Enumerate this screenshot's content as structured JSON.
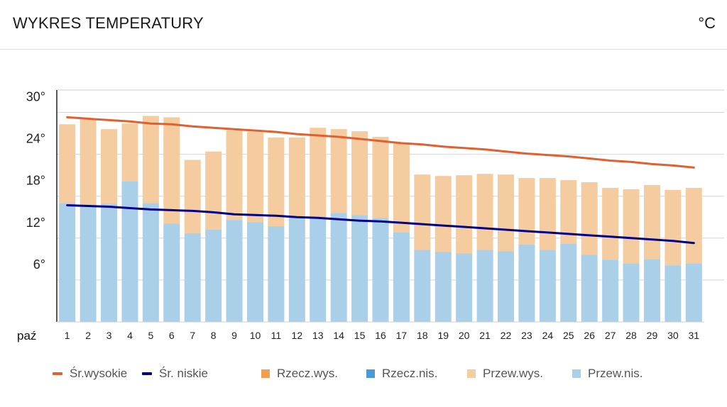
{
  "header": {
    "title": "WYKRES TEMPERATURY",
    "unit": "°C"
  },
  "legend": [
    {
      "label": "Śr.wysokie",
      "kind": "line",
      "color": "#e0602f"
    },
    {
      "label": "Śr. niskie",
      "kind": "line",
      "color": "#00008b"
    },
    {
      "label": "Rzecz.wys.",
      "kind": "box",
      "color": "#f0a050"
    },
    {
      "label": "Rzecz.nis.",
      "kind": "box",
      "color": "#4a9ad6"
    },
    {
      "label": "Przew.wys.",
      "kind": "box",
      "color": "#f5cba0"
    },
    {
      "label": "Przew.nis.",
      "kind": "box",
      "color": "#a9cfe9"
    }
  ],
  "chart_data": {
    "type": "bar",
    "title": "WYKRES TEMPERATURY",
    "unit": "°C",
    "month_label": "paź",
    "categories": [
      "1",
      "2",
      "3",
      "4",
      "5",
      "6",
      "7",
      "8",
      "9",
      "10",
      "11",
      "12",
      "13",
      "14",
      "15",
      "16",
      "17",
      "18",
      "19",
      "20",
      "21",
      "22",
      "23",
      "24",
      "25",
      "26",
      "27",
      "28",
      "29",
      "30",
      "31"
    ],
    "y_ticks": [
      6,
      12,
      18,
      24,
      30
    ],
    "y_tick_labels": [
      "6°",
      "12°",
      "18°",
      "24°",
      "30°"
    ],
    "ylim": [
      0,
      30
    ],
    "grid": true,
    "legend_position": "bottom",
    "series": [
      {
        "name": "Przew.wys.",
        "kind": "bar",
        "color": "#f5cba0",
        "values": [
          28.3,
          29,
          27.6,
          28.4,
          29.5,
          29.3,
          23.2,
          24.4,
          27.4,
          27.2,
          26.4,
          26.4,
          27.8,
          27.6,
          27.3,
          26.5,
          25.7,
          21.1,
          20.9,
          21,
          21.2,
          21.1,
          20.6,
          20.6,
          20.3,
          20,
          19.2,
          19,
          19.6,
          18.9,
          19.2
        ]
      },
      {
        "name": "Przew.nis.",
        "kind": "bar",
        "color": "#a9cfe9",
        "values": [
          17,
          16.8,
          16.9,
          20.1,
          17,
          14.1,
          12.7,
          13.2,
          14.6,
          14.3,
          13.7,
          15,
          14.8,
          15.6,
          15.3,
          14.9,
          12.8,
          10.3,
          10,
          9.8,
          10.3,
          10.1,
          11.1,
          10.3,
          11.2,
          9.6,
          8.9,
          8.4,
          9,
          8.1,
          8.4
        ]
      },
      {
        "name": "Śr.wysokie",
        "kind": "line",
        "color": "#e0602f",
        "values": [
          29.3,
          29.1,
          28.9,
          28.7,
          28.4,
          28.3,
          28,
          27.8,
          27.6,
          27.4,
          27.2,
          26.9,
          26.7,
          26.5,
          26.2,
          25.9,
          25.6,
          25.4,
          25.1,
          24.9,
          24.7,
          24.4,
          24.1,
          23.9,
          23.7,
          23.4,
          23.1,
          22.9,
          22.6,
          22.4,
          22.1
        ]
      },
      {
        "name": "Śr. niskie",
        "kind": "line",
        "color": "#00008b",
        "values": [
          16.7,
          16.6,
          16.5,
          16.3,
          16.1,
          16,
          15.9,
          15.7,
          15.4,
          15.3,
          15.2,
          15,
          14.9,
          14.7,
          14.5,
          14.4,
          14.2,
          14,
          13.8,
          13.6,
          13.4,
          13.2,
          13,
          12.8,
          12.6,
          12.4,
          12.2,
          12,
          11.8,
          11.6,
          11.3
        ]
      }
    ]
  }
}
